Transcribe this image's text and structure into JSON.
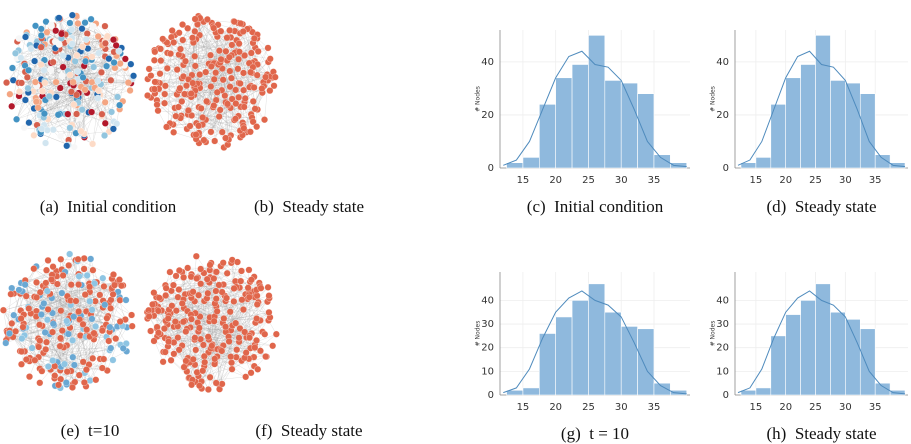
{
  "networks": [
    {
      "caption": "(a)  Initial condition"
    },
    {
      "caption": "(b)  Steady state"
    },
    {
      "caption": "(e)  t=10"
    },
    {
      "caption": "(f)  Steady state"
    }
  ],
  "chart_data": [
    {
      "type": "histogram",
      "caption": "(c)  Initial condition",
      "y_label": "# Nodes",
      "color": "#8fb9dd",
      "line_color": "#4f8bbd",
      "bins": [
        12.5,
        15,
        17.5,
        20,
        22.5,
        25,
        27.5,
        30,
        32.5,
        35,
        37.5,
        40
      ],
      "counts": [
        2,
        4,
        24,
        34,
        39,
        50,
        33,
        32,
        28,
        5,
        2
      ],
      "kde": {
        "x": [
          12,
          14,
          16,
          18,
          20,
          22,
          24,
          26,
          28,
          30,
          32,
          34,
          36,
          38,
          40
        ],
        "values": [
          1,
          3,
          10,
          22,
          34,
          42,
          44,
          39,
          38,
          33,
          22,
          10,
          4,
          1,
          0.5
        ]
      },
      "xlim": [
        11.5,
        40.5
      ],
      "ylim": [
        0,
        52
      ],
      "xticks": [
        15,
        20,
        25,
        30,
        35
      ],
      "yticks": [
        0,
        20,
        40
      ],
      "grid": true
    },
    {
      "type": "histogram",
      "caption": "(d)  Steady state",
      "y_label": "# Nodes",
      "color": "#8fb9dd",
      "line_color": "#4f8bbd",
      "bins": [
        12.5,
        15,
        17.5,
        20,
        22.5,
        25,
        27.5,
        30,
        32.5,
        35,
        37.5,
        40
      ],
      "counts": [
        2,
        4,
        24,
        34,
        39,
        50,
        33,
        32,
        28,
        5,
        2
      ],
      "kde": {
        "x": [
          12,
          14,
          16,
          18,
          20,
          22,
          24,
          26,
          28,
          30,
          32,
          34,
          36,
          38,
          40
        ],
        "values": [
          1,
          3,
          10,
          22,
          34,
          42,
          44,
          39,
          38,
          33,
          22,
          10,
          4,
          1,
          0.5
        ]
      },
      "xlim": [
        11.5,
        40.5
      ],
      "ylim": [
        0,
        52
      ],
      "xticks": [
        15,
        20,
        25,
        30,
        35
      ],
      "yticks": [
        0,
        20,
        40
      ],
      "grid": true
    },
    {
      "type": "histogram",
      "caption": "(g)  t = 10",
      "y_label": "# Nodes",
      "color": "#8fb9dd",
      "line_color": "#4f8bbd",
      "bins": [
        12.5,
        15,
        17.5,
        20,
        22.5,
        25,
        27.5,
        30,
        32.5,
        35,
        37.5,
        40
      ],
      "counts": [
        2,
        3,
        26,
        33,
        40,
        47,
        35,
        29,
        28,
        5,
        2
      ],
      "kde": {
        "x": [
          12,
          14,
          16,
          18,
          20,
          22,
          24,
          26,
          28,
          30,
          32,
          34,
          36,
          38,
          40
        ],
        "values": [
          1,
          3,
          11,
          24,
          35,
          41,
          44,
          40,
          38,
          33,
          22,
          10,
          4,
          1,
          0.5
        ]
      },
      "xlim": [
        11.5,
        40.5
      ],
      "ylim": [
        0,
        52
      ],
      "xticks": [
        15,
        20,
        25,
        30,
        35
      ],
      "yticks": [
        0,
        10,
        20,
        30,
        40
      ],
      "grid": true
    },
    {
      "type": "histogram",
      "caption": "(h)  Steady state",
      "y_label": "# Nodes",
      "color": "#8fb9dd",
      "line_color": "#4f8bbd",
      "bins": [
        12.5,
        15,
        17.5,
        20,
        22.5,
        25,
        27.5,
        30,
        32.5,
        35,
        37.5,
        40
      ],
      "counts": [
        2,
        3,
        25,
        34,
        40,
        47,
        35,
        32,
        28,
        5,
        2
      ],
      "kde": {
        "x": [
          12,
          14,
          16,
          18,
          20,
          22,
          24,
          26,
          28,
          30,
          32,
          34,
          36,
          38,
          40
        ],
        "values": [
          1,
          3,
          11,
          24,
          35,
          41,
          44,
          40,
          38,
          33,
          22,
          10,
          4,
          1,
          0.5
        ]
      },
      "xlim": [
        11.5,
        40.5
      ],
      "ylim": [
        0,
        52
      ],
      "xticks": [
        15,
        20,
        25,
        30,
        35
      ],
      "yticks": [
        0,
        10,
        20,
        30,
        40
      ],
      "grid": true
    }
  ]
}
